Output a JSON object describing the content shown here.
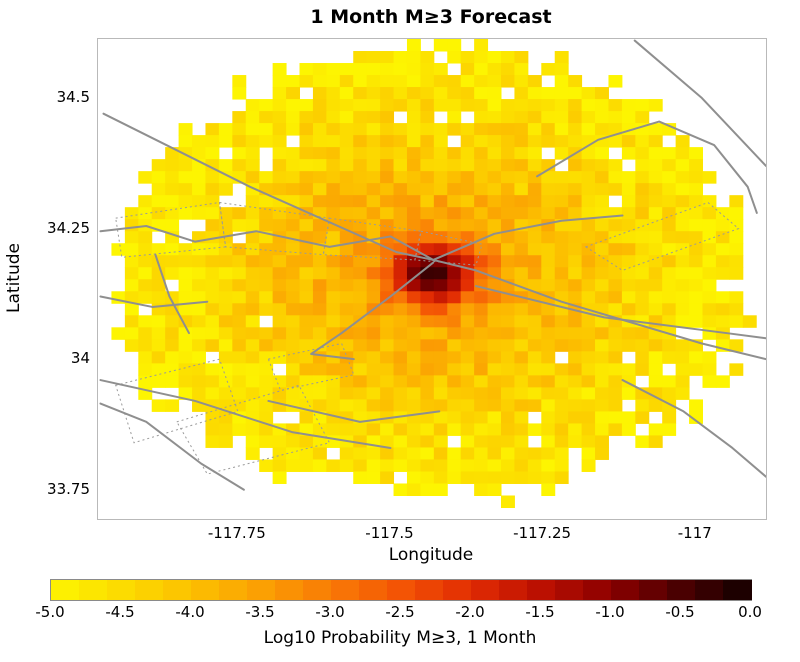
{
  "chart_data": {
    "type": "heatmap",
    "title": "1 Month M≥3 Forecast",
    "xlabel": "Longitude",
    "ylabel": "Latitude",
    "xlim": [
      -117.979,
      -116.885
    ],
    "ylim": [
      33.694,
      34.613
    ],
    "xtick_values": [
      -117.75,
      -117.5,
      -117.25,
      -117
    ],
    "xtick_labels": [
      "-117.75",
      "-117.5",
      "-117.25",
      "-117"
    ],
    "ytick_values": [
      34.5,
      34.25,
      34,
      33.75
    ],
    "ytick_labels": [
      "34.5",
      "34.25",
      "34",
      "33.75"
    ],
    "grid": {
      "cell_dx": 0.022,
      "cell_dy": 0.023
    },
    "field_model": {
      "description": "Estimated log10 probability field: elliptical footprint, radially decaying peak near San Bernardino area, speckle noise, ragged rim",
      "center": [
        -117.43,
        34.165
      ],
      "ellipse_radius": [
        0.52,
        0.43
      ],
      "background_value": -5.0,
      "peak_value": -0.3,
      "components": [
        {
          "amplitude": 3.2,
          "sigma": 0.07
        },
        {
          "amplitude": 1.5,
          "sigma": 0.35
        }
      ],
      "noise_amplitude": 0.45,
      "hole_fraction": 0.05,
      "rim_jitter": 0.12,
      "seed": 1337,
      "value_range": [
        -5,
        0
      ]
    },
    "colormap": {
      "values": [
        -5.0,
        -4.5,
        -4.0,
        -3.5,
        -3.0,
        -2.5,
        -2.0,
        -1.5,
        -1.0,
        -0.5,
        0.0
      ],
      "colors": [
        "#fdf501",
        "#fcdc00",
        "#fcc000",
        "#fba003",
        "#f97b06",
        "#f35405",
        "#e22c03",
        "#bb1001",
        "#8b0000",
        "#4a0001",
        "#120000"
      ]
    },
    "colorbar": {
      "tick_labels": [
        "-5.0",
        "-4.5",
        "-4.0",
        "-3.5",
        "-3.0",
        "-2.5",
        "-2.0",
        "-1.5",
        "-1.0",
        "-0.5",
        "0.0"
      ],
      "label": "Log10 Probability M≥3, 1 Month",
      "segments": 25
    },
    "overlays": {
      "fault_lines": {
        "color": "#8f8f8f",
        "width": 2,
        "paths": [
          [
            [
              -117.97,
              34.47
            ],
            [
              -117.73,
              34.33
            ],
            [
              -117.49,
              34.205
            ],
            [
              -117.43,
              34.19
            ],
            [
              -117.36,
              34.17
            ],
            [
              -117.22,
              34.11
            ],
            [
              -116.99,
              34.03
            ],
            [
              -116.885,
              34.0
            ]
          ],
          [
            [
              -117.975,
              34.245
            ],
            [
              -117.9,
              34.255
            ],
            [
              -117.82,
              34.225
            ],
            [
              -117.72,
              34.245
            ],
            [
              -117.6,
              34.215
            ],
            [
              -117.5,
              34.235
            ],
            [
              -117.43,
              34.19
            ]
          ],
          [
            [
              -117.43,
              34.19
            ],
            [
              -117.33,
              34.24
            ],
            [
              -117.22,
              34.265
            ],
            [
              -117.12,
              34.275
            ]
          ],
          [
            [
              -117.26,
              34.35
            ],
            [
              -117.16,
              34.42
            ],
            [
              -117.06,
              34.455
            ],
            [
              -116.97,
              34.41
            ],
            [
              -116.915,
              34.33
            ],
            [
              -116.9,
              34.28
            ]
          ],
          [
            [
              -117.1,
              34.61
            ],
            [
              -116.99,
              34.5
            ],
            [
              -116.885,
              34.37
            ]
          ],
          [
            [
              -117.43,
              34.185
            ],
            [
              -117.5,
              34.12
            ],
            [
              -117.58,
              34.05
            ],
            [
              -117.63,
              34.01
            ],
            [
              -117.56,
              34.0
            ]
          ],
          [
            [
              -117.975,
              33.96
            ],
            [
              -117.82,
              33.92
            ],
            [
              -117.66,
              33.86
            ],
            [
              -117.5,
              33.83
            ]
          ],
          [
            [
              -117.975,
              33.915
            ],
            [
              -117.9,
              33.88
            ],
            [
              -117.81,
              33.8
            ],
            [
              -117.74,
              33.75
            ]
          ],
          [
            [
              -117.12,
              33.96
            ],
            [
              -117.02,
              33.9
            ],
            [
              -116.94,
              33.83
            ],
            [
              -116.885,
              33.775
            ]
          ],
          [
            [
              -117.36,
              34.14
            ],
            [
              -117.15,
              34.08
            ],
            [
              -116.95,
              34.05
            ],
            [
              -116.885,
              34.04
            ]
          ],
          [
            [
              -117.885,
              34.2
            ],
            [
              -117.862,
              34.12
            ],
            [
              -117.83,
              34.05
            ]
          ],
          [
            [
              -117.975,
              34.12
            ],
            [
              -117.89,
              34.1
            ],
            [
              -117.8,
              34.11
            ]
          ],
          [
            [
              -117.7,
              33.92
            ],
            [
              -117.55,
              33.88
            ],
            [
              -117.42,
              33.9
            ]
          ]
        ]
      },
      "dotted_polygons": {
        "color": "#9a9a9a",
        "width": 1,
        "paths": [
          [
            [
              -117.95,
              34.27
            ],
            [
              -117.78,
              34.3
            ],
            [
              -117.77,
              34.215
            ],
            [
              -117.94,
              34.195
            ]
          ],
          [
            [
              -117.78,
              34.3
            ],
            [
              -117.6,
              34.27
            ],
            [
              -117.61,
              34.2
            ],
            [
              -117.77,
              34.215
            ]
          ],
          [
            [
              -117.6,
              34.27
            ],
            [
              -117.45,
              34.245
            ],
            [
              -117.46,
              34.19
            ],
            [
              -117.61,
              34.2
            ]
          ],
          [
            [
              -117.45,
              34.245
            ],
            [
              -117.35,
              34.22
            ],
            [
              -117.36,
              34.18
            ],
            [
              -117.46,
              34.19
            ]
          ],
          [
            [
              -117.18,
              34.215
            ],
            [
              -116.98,
              34.3
            ],
            [
              -116.93,
              34.25
            ],
            [
              -117.12,
              34.17
            ]
          ],
          [
            [
              -117.95,
              33.95
            ],
            [
              -117.78,
              34.0
            ],
            [
              -117.75,
              33.9
            ],
            [
              -117.92,
              33.84
            ]
          ],
          [
            [
              -117.85,
              33.88
            ],
            [
              -117.65,
              33.95
            ],
            [
              -117.6,
              33.84
            ],
            [
              -117.8,
              33.78
            ]
          ],
          [
            [
              -117.7,
              34.0
            ],
            [
              -117.58,
              34.03
            ],
            [
              -117.56,
              33.97
            ],
            [
              -117.68,
              33.94
            ]
          ]
        ]
      }
    }
  }
}
